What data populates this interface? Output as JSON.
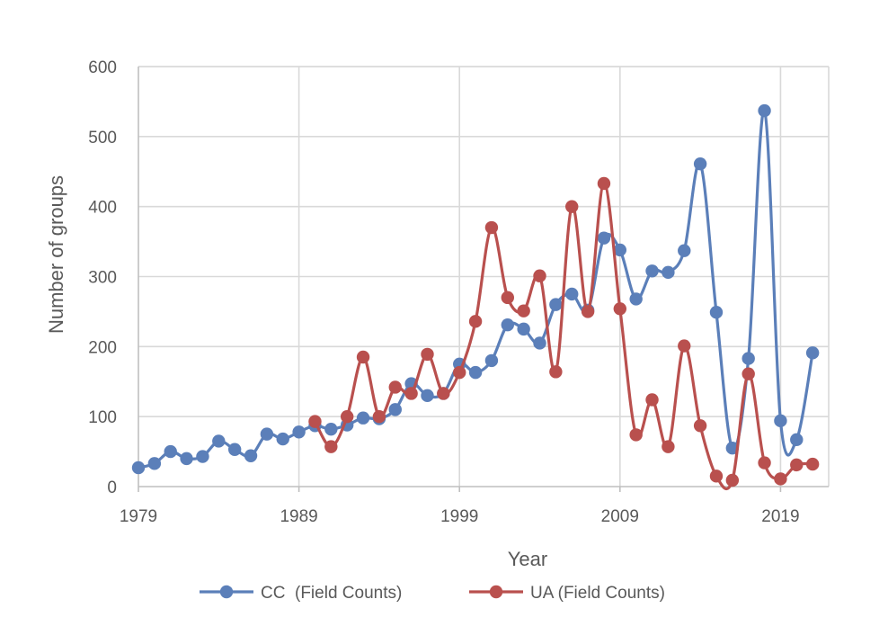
{
  "chart_data": {
    "type": "line",
    "title": "",
    "xlabel": "Year",
    "ylabel": "Number of groups",
    "xlim": [
      1979,
      2022
    ],
    "ylim": [
      0,
      600
    ],
    "x_ticks": [
      1979,
      1989,
      1999,
      2009,
      2019
    ],
    "y_ticks": [
      0,
      100,
      200,
      300,
      400,
      500,
      600
    ],
    "grid": true,
    "legend_position": "bottom",
    "series": [
      {
        "name": "CC  (Field Counts)",
        "color": "#5b7fb9",
        "x": [
          1979,
          1980,
          1981,
          1982,
          1983,
          1984,
          1985,
          1986,
          1987,
          1988,
          1989,
          1990,
          1991,
          1992,
          1993,
          1994,
          1995,
          1996,
          1997,
          1998,
          1999,
          2000,
          2001,
          2002,
          2003,
          2004,
          2005,
          2006,
          2007,
          2008,
          2009,
          2010,
          2011,
          2012,
          2013,
          2014,
          2015,
          2016,
          2017,
          2018,
          2019,
          2020,
          2021
        ],
        "y": [
          27,
          33,
          50,
          40,
          43,
          65,
          53,
          44,
          75,
          68,
          78,
          87,
          82,
          88,
          98,
          97,
          110,
          147,
          130,
          133,
          175,
          163,
          180,
          231,
          225,
          205,
          260,
          275,
          252,
          355,
          338,
          268,
          308,
          306,
          337,
          461,
          249,
          55,
          183,
          537,
          94,
          67,
          191
        ]
      },
      {
        "name": "UA (Field Counts)",
        "color": "#b9504e",
        "x": [
          1990,
          1991,
          1992,
          1993,
          1994,
          1995,
          1996,
          1997,
          1998,
          1999,
          2000,
          2001,
          2002,
          2003,
          2004,
          2005,
          2006,
          2007,
          2008,
          2009,
          2010,
          2011,
          2012,
          2013,
          2014,
          2015,
          2016,
          2017,
          2018,
          2019,
          2020,
          2021
        ],
        "y": [
          93,
          57,
          100,
          185,
          100,
          142,
          133,
          189,
          133,
          163,
          236,
          370,
          270,
          251,
          301,
          164,
          400,
          250,
          433,
          254,
          74,
          124,
          57,
          201,
          87,
          15,
          9,
          161,
          34,
          11,
          31,
          32
        ]
      }
    ]
  }
}
